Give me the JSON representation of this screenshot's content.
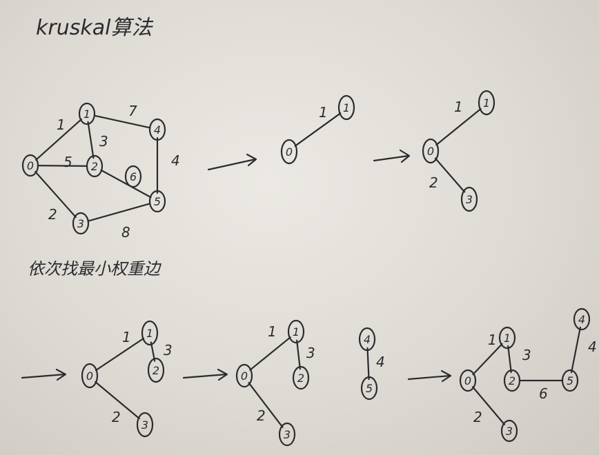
{
  "title": "kruskal算法",
  "subtitle": "依次找最小权重边",
  "graph": {
    "nodes": [
      "0",
      "1",
      "2",
      "3",
      "4",
      "5",
      "6"
    ],
    "edges": [
      {
        "from": "0",
        "to": "1",
        "weight": "1"
      },
      {
        "from": "1",
        "to": "2",
        "weight": "3"
      },
      {
        "from": "1",
        "to": "4",
        "weight": "7"
      },
      {
        "from": "4",
        "to": "5",
        "weight": "4"
      },
      {
        "from": "0",
        "to": "2",
        "weight": "5"
      },
      {
        "from": "2",
        "to": "5",
        "weight": ""
      },
      {
        "from": "0",
        "to": "3",
        "weight": "2"
      },
      {
        "from": "3",
        "to": "5",
        "weight": "8"
      }
    ]
  },
  "steps": [
    {
      "edges": [
        {
          "from": "0",
          "to": "1",
          "weight": "1"
        }
      ]
    },
    {
      "edges": [
        {
          "from": "0",
          "to": "1",
          "weight": "1"
        },
        {
          "from": "0",
          "to": "3",
          "weight": "2"
        }
      ]
    },
    {
      "edges": [
        {
          "from": "0",
          "to": "1",
          "weight": "1"
        },
        {
          "from": "0",
          "to": "3",
          "weight": "2"
        },
        {
          "from": "1",
          "to": "2",
          "weight": "3"
        }
      ]
    },
    {
      "edges": [
        {
          "from": "0",
          "to": "1",
          "weight": "1"
        },
        {
          "from": "0",
          "to": "3",
          "weight": "2"
        },
        {
          "from": "1",
          "to": "2",
          "weight": "3"
        },
        {
          "from": "4",
          "to": "5",
          "weight": "4"
        }
      ]
    },
    {
      "edges": [
        {
          "from": "0",
          "to": "1",
          "weight": "1"
        },
        {
          "from": "0",
          "to": "3",
          "weight": "2"
        },
        {
          "from": "1",
          "to": "2",
          "weight": "3"
        },
        {
          "from": "4",
          "to": "5",
          "weight": "4"
        },
        {
          "from": "2",
          "to": "5",
          "weight": "6"
        }
      ]
    }
  ]
}
